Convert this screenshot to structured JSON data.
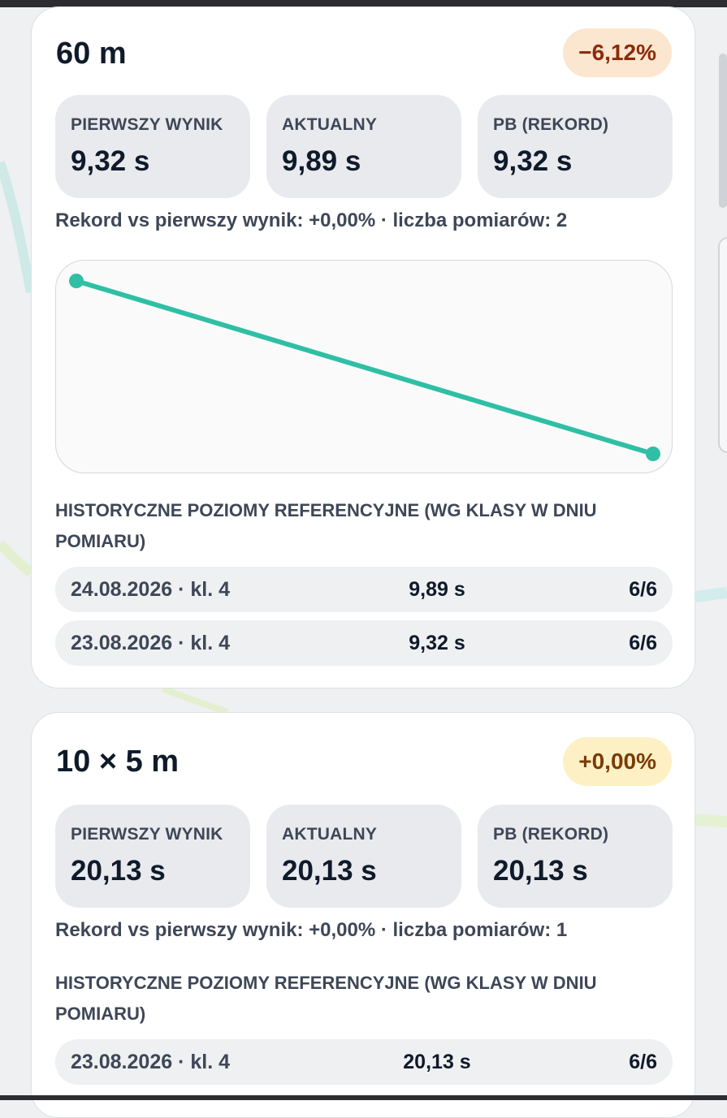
{
  "colors": {
    "accent_line": "#2fbfa5",
    "badge_negative_bg": "#fbe6cf",
    "badge_negative_text": "#8a2b08",
    "badge_zero_bg": "#fdf0c4",
    "badge_zero_text": "#7a3b06",
    "stat_box_bg": "#e9eaed"
  },
  "cards": [
    {
      "title": "60 m",
      "change_badge": "−6,12%",
      "stats": [
        {
          "label": "PIERWSZY WYNIK",
          "value": "9,32 s"
        },
        {
          "label": "AKTUALNY",
          "value": "9,89 s"
        },
        {
          "label": "PB (REKORD)",
          "value": "9,32 s"
        }
      ],
      "summary": "Rekord vs pierwszy wynik: +0,00% · liczba pomiarów: 2",
      "history_heading": "HISTORYCZNE POZIOMY REFERENCYJNE (WG KLASY W DNIU POMIARU)",
      "history": [
        {
          "date": "24.08.2026 · kl. 4",
          "value": "9,89 s",
          "level": "6/6"
        },
        {
          "date": "23.08.2026 · kl. 4",
          "value": "9,32 s",
          "level": "6/6"
        }
      ]
    },
    {
      "title": "10 × 5 m",
      "change_badge": "+0,00%",
      "stats": [
        {
          "label": "PIERWSZY WYNIK",
          "value": "20,13 s"
        },
        {
          "label": "AKTUALNY",
          "value": "20,13 s"
        },
        {
          "label": "PB (REKORD)",
          "value": "20,13 s"
        }
      ],
      "summary": "Rekord vs pierwszy wynik: +0,00% · liczba pomiarów: 1",
      "history_heading": "HISTORYCZNE POZIOMY REFERENCYJNE (WG KLASY W DNIU POMIARU)",
      "history": [
        {
          "date": "23.08.2026 · kl. 4",
          "value": "20,13 s",
          "level": "6/6"
        }
      ]
    }
  ],
  "chart_data": {
    "type": "line",
    "x": [
      "23.08.2026",
      "24.08.2026"
    ],
    "series": [
      {
        "values": [
          9.32,
          9.89
        ]
      }
    ],
    "title": "",
    "xlabel": "",
    "ylabel": "",
    "y_inverted": true,
    "grid": false
  }
}
